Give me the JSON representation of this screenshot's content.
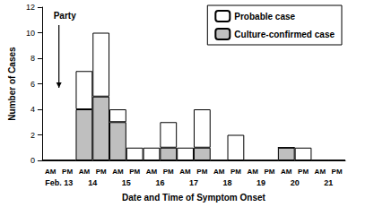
{
  "chart_data": {
    "type": "bar",
    "stacked": true,
    "y_label": "Number of Cases",
    "x_label": "Date and Time of Symptom Onset",
    "annotations": [
      "Party"
    ],
    "categories": [
      "AM",
      "PM",
      "AM",
      "PM",
      "AM",
      "PM",
      "AM",
      "PM",
      "AM",
      "PM",
      "AM",
      "PM",
      "AM",
      "PM",
      "AM",
      "PM",
      "AM",
      "PM"
    ],
    "dates": [
      "Feb. 13",
      "14",
      "15",
      "16",
      "17",
      "18",
      "19",
      "20",
      "21"
    ],
    "series": [
      {
        "name": "Probable case",
        "color": "#ffffff",
        "values": [
          0,
          0,
          3,
          5,
          1,
          1,
          1,
          2,
          1,
          3,
          0,
          2,
          0,
          0,
          0,
          1,
          0,
          0
        ]
      },
      {
        "name": "Culture-confirmed case",
        "color": "#bfbfbf",
        "values": [
          0,
          0,
          4,
          5,
          3,
          0,
          0,
          1,
          0,
          1,
          0,
          0,
          0,
          0,
          1,
          0,
          0,
          0
        ]
      }
    ],
    "ylim": [
      0,
      12
    ],
    "yticks": [
      0,
      2,
      4,
      6,
      8,
      10,
      12
    ],
    "legend": "upper right"
  }
}
